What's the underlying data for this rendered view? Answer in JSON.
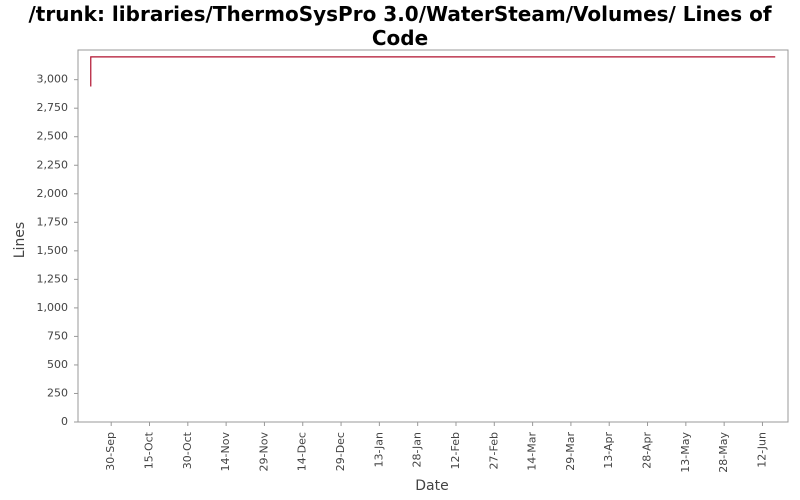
{
  "chart_data": {
    "type": "line",
    "title": "/trunk: libraries/ThermoSysPro 3.0/WaterSteam/Volumes/ Lines of Code",
    "x_label": "Date",
    "y_label": "Lines",
    "x": [
      "22-Sep",
      "22-Sep",
      "17-Jun"
    ],
    "values": [
      2940,
      3200,
      3200
    ],
    "color": "#b0102e",
    "xlim": [
      "17-Sep",
      "22-Jun"
    ],
    "xticks": [
      "30-Sep",
      "15-Oct",
      "30-Oct",
      "14-Nov",
      "29-Nov",
      "14-Dec",
      "29-Dec",
      "13-Jan",
      "28-Jan",
      "12-Feb",
      "27-Feb",
      "14-Mar",
      "29-Mar",
      "13-Apr",
      "28-Apr",
      "13-May",
      "28-May",
      "12-Jun"
    ],
    "ylim": [
      0,
      3260
    ],
    "yticks": [
      0,
      250,
      500,
      750,
      {
        "value": 1000,
        "label": "1,000"
      },
      {
        "value": 1250,
        "label": "1,250"
      },
      {
        "value": 1500,
        "label": "1,500"
      },
      {
        "value": 1750,
        "label": "1,750"
      },
      {
        "value": 2000,
        "label": "2,000"
      },
      {
        "value": 2250,
        "label": "2,250"
      },
      {
        "value": 2500,
        "label": "2,500"
      },
      {
        "value": 2750,
        "label": "2,750"
      },
      {
        "value": 3000,
        "label": "3,000"
      }
    ],
    "grid": false
  }
}
